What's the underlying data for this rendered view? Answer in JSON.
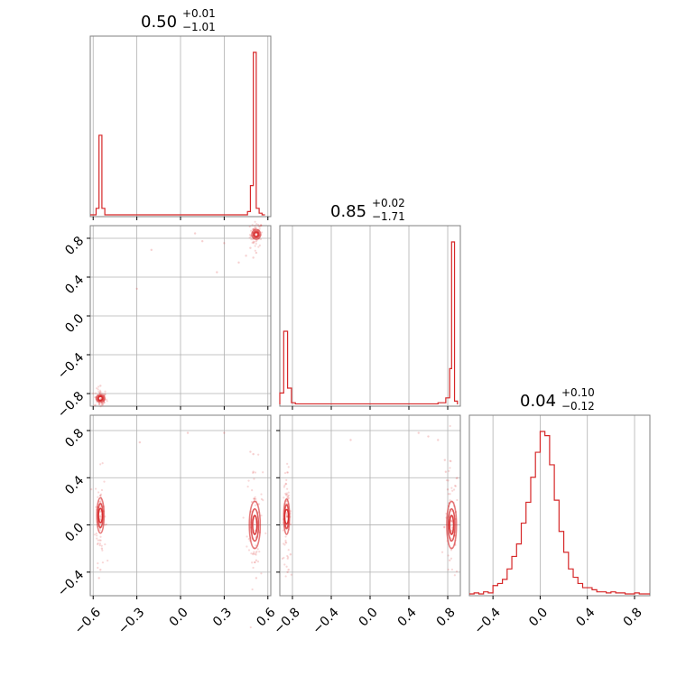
{
  "chart_data": {
    "type": "corner",
    "color": "#d62728",
    "grid": true,
    "parameters": [
      {
        "title": {
          "main": "0.50",
          "plus": "+0.01",
          "minus": "−1.01"
        },
        "range": [
          -0.62,
          0.62
        ],
        "ticks": [
          -0.6,
          -0.3,
          0.0,
          0.3,
          0.6
        ],
        "tick_labels": [
          "−0.6",
          "−0.3",
          "0.0",
          "0.3",
          "0.6"
        ],
        "hist_bins": [
          -0.62,
          -0.58,
          -0.56,
          -0.54,
          -0.52,
          -0.5,
          0.46,
          0.48,
          0.5,
          0.52,
          0.54,
          0.56,
          0.58
        ],
        "hist_values": [
          0,
          0.04,
          0.49,
          0.04,
          0.0,
          0.0,
          0.02,
          0.18,
          1.0,
          0.04,
          0.01,
          0
        ]
      },
      {
        "title": {
          "main": "0.85",
          "plus": "+0.02",
          "minus": "−1.71"
        },
        "range": [
          -0.93,
          0.93
        ],
        "ticks": [
          -0.8,
          -0.4,
          0.0,
          0.4,
          0.8
        ],
        "tick_labels": [
          "−0.8",
          "−0.4",
          "0.0",
          "0.4",
          "0.8"
        ],
        "hist_bins": [
          -0.93,
          -0.89,
          -0.85,
          -0.81,
          -0.77,
          0.6,
          0.7,
          0.78,
          0.8,
          0.82,
          0.84,
          0.87,
          0.9
        ],
        "hist_values": [
          0.07,
          0.45,
          0.1,
          0.01,
          0.003,
          0.003,
          0.01,
          0.04,
          0.04,
          0.22,
          1.0,
          0.02
        ]
      },
      {
        "title": {
          "main": "0.04",
          "plus": "+0.10",
          "minus": "−0.12"
        },
        "range": [
          -0.6,
          0.93
        ],
        "ticks": [
          -0.4,
          0.0,
          0.4,
          0.8
        ],
        "tick_labels": [
          "−0.4",
          "0.0",
          "0.4",
          "0.8"
        ],
        "hist_x": [
          -0.6,
          -0.56,
          -0.52,
          -0.48,
          -0.44,
          -0.4,
          -0.36,
          -0.32,
          -0.28,
          -0.24,
          -0.2,
          -0.16,
          -0.12,
          -0.08,
          -0.04,
          0.0,
          0.04,
          0.08,
          0.12,
          0.16,
          0.2,
          0.24,
          0.28,
          0.32,
          0.36,
          0.4,
          0.44,
          0.48,
          0.52,
          0.56,
          0.6,
          0.64,
          0.68,
          0.72,
          0.76,
          0.8,
          0.84,
          0.88,
          0.93
        ],
        "hist_values": [
          0.0,
          0.005,
          0.0,
          0.01,
          0.005,
          0.04,
          0.05,
          0.07,
          0.12,
          0.18,
          0.24,
          0.34,
          0.44,
          0.56,
          0.68,
          0.78,
          0.76,
          0.62,
          0.45,
          0.3,
          0.2,
          0.12,
          0.08,
          0.05,
          0.03,
          0.03,
          0.02,
          0.01,
          0.01,
          0.005,
          0.01,
          0.005,
          0.005,
          0.0,
          0.0,
          0.005,
          0.0,
          0.0
        ]
      }
    ],
    "pairs": [
      {
        "x": 0,
        "y": 1,
        "clusters": [
          {
            "cx": 0.52,
            "cy": 0.84,
            "sx": 0.012,
            "sy": 0.02
          },
          {
            "cx": -0.55,
            "cy": -0.85,
            "sx": 0.012,
            "sy": 0.015
          }
        ],
        "scatter": [
          [
            0.1,
            0.85
          ],
          [
            0.15,
            0.77
          ],
          [
            -0.3,
            0.28
          ],
          [
            -0.2,
            0.68
          ],
          [
            0.3,
            0.75
          ],
          [
            0.45,
            0.62
          ],
          [
            0.48,
            0.7
          ],
          [
            0.4,
            0.55
          ],
          [
            0.52,
            0.65
          ],
          [
            -0.55,
            -0.72
          ],
          [
            0.25,
            0.45
          ],
          [
            0.5,
            0.6
          ]
        ]
      },
      {
        "x": 0,
        "y": 2,
        "clusters": [
          {
            "cx": -0.55,
            "cy": 0.08,
            "sx": 0.01,
            "sy": 0.06
          },
          {
            "cx": 0.51,
            "cy": 0.0,
            "sx": 0.015,
            "sy": 0.08
          }
        ],
        "scatter": [
          [
            -0.55,
            -0.38
          ],
          [
            -0.55,
            0.25
          ],
          [
            -0.54,
            -0.2
          ],
          [
            0.5,
            0.45
          ],
          [
            0.52,
            -0.3
          ],
          [
            0.5,
            0.6
          ],
          [
            -0.28,
            0.7
          ],
          [
            0.05,
            0.78
          ],
          [
            0.3,
            0.78
          ],
          [
            0.48,
            0.62
          ],
          [
            0.52,
            -0.45
          ],
          [
            -0.56,
            -0.45
          ]
        ]
      },
      {
        "x": 1,
        "y": 2,
        "clusters": [
          {
            "cx": -0.86,
            "cy": 0.07,
            "sx": 0.012,
            "sy": 0.06
          },
          {
            "cx": 0.84,
            "cy": 0.0,
            "sx": 0.02,
            "sy": 0.08
          }
        ],
        "scatter": [
          [
            -0.84,
            -0.38
          ],
          [
            -0.84,
            0.25
          ],
          [
            -0.82,
            -0.25
          ],
          [
            -0.85,
            -0.4
          ],
          [
            0.6,
            0.75
          ],
          [
            0.7,
            0.72
          ],
          [
            0.78,
            0.45
          ],
          [
            0.8,
            0.3
          ],
          [
            0.82,
            -0.3
          ],
          [
            0.5,
            0.78
          ],
          [
            -0.2,
            0.72
          ],
          [
            0.77,
            0.55
          ]
        ]
      }
    ]
  }
}
